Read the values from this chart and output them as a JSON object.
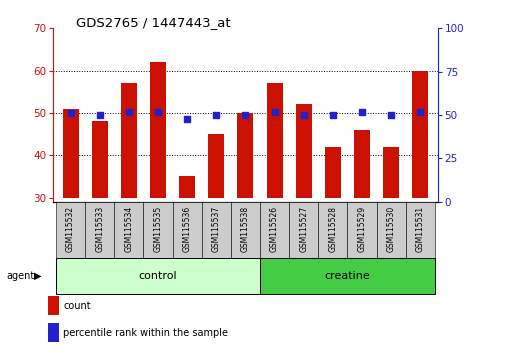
{
  "title": "GDS2765 / 1447443_at",
  "categories": [
    "GSM115532",
    "GSM115533",
    "GSM115534",
    "GSM115535",
    "GSM115536",
    "GSM115537",
    "GSM115538",
    "GSM115526",
    "GSM115527",
    "GSM115528",
    "GSM115529",
    "GSM115530",
    "GSM115531"
  ],
  "counts": [
    51,
    48,
    57,
    62,
    35,
    45,
    50,
    57,
    52,
    42,
    46,
    42,
    60
  ],
  "percentiles": [
    51,
    50,
    52,
    52,
    48,
    50,
    50,
    52,
    50,
    50,
    52,
    50,
    52
  ],
  "bar_bottom": 30,
  "ylim_left": [
    29,
    70
  ],
  "ylim_right": [
    0,
    100
  ],
  "yticks_left": [
    30,
    40,
    50,
    60,
    70
  ],
  "yticks_right": [
    0,
    25,
    50,
    75,
    100
  ],
  "bar_color": "#cc1100",
  "dot_color": "#2222cc",
  "control_color": "#ccffcc",
  "creatine_color": "#44cc44",
  "label_bg_color": "#cccccc",
  "legend_count_label": "count",
  "legend_pct_label": "percentile rank within the sample",
  "agent_label": "agent",
  "control_label": "control",
  "creatine_label": "creatine",
  "n_control": 7,
  "n_creatine": 6
}
